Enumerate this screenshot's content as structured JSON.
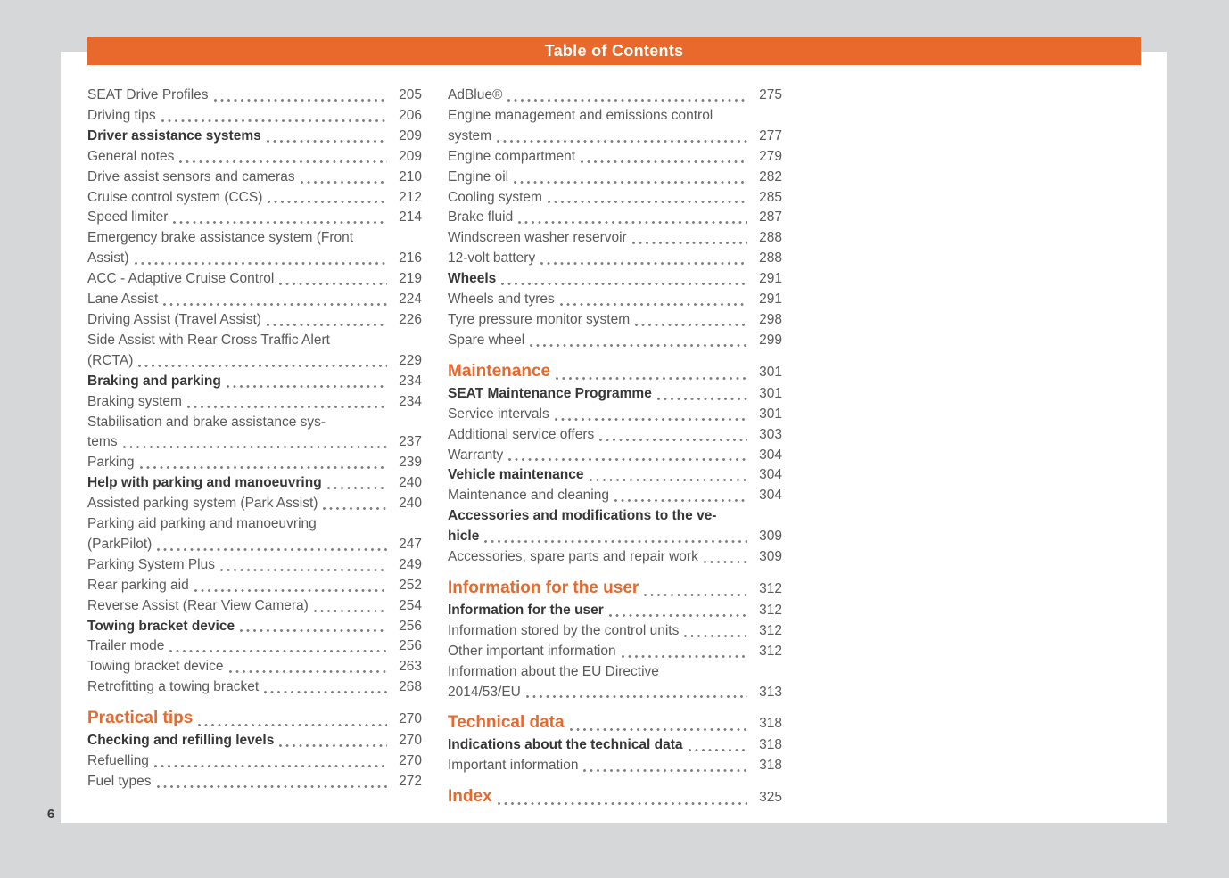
{
  "page": {
    "background": "#d6d7d8",
    "sheet_color": "#ffffff",
    "accent": "#e9682b",
    "page_number": "6"
  },
  "header": {
    "title": "Table of Contents"
  },
  "columns": [
    {
      "entries": [
        {
          "lines": [
            "SEAT Drive Profiles"
          ],
          "page": "205",
          "style": "normal"
        },
        {
          "lines": [
            "Driving tips"
          ],
          "page": "206",
          "style": "normal"
        },
        {
          "lines": [
            "Driver assistance systems"
          ],
          "page": "209",
          "style": "bold"
        },
        {
          "lines": [
            "General notes"
          ],
          "page": "209",
          "style": "normal"
        },
        {
          "lines": [
            "Drive assist sensors and cameras"
          ],
          "page": "210",
          "style": "normal"
        },
        {
          "lines": [
            "Cruise control system (CCS)"
          ],
          "page": "212",
          "style": "normal"
        },
        {
          "lines": [
            "Speed limiter"
          ],
          "page": "214",
          "style": "normal"
        },
        {
          "lines": [
            "Emergency brake assistance system (Front",
            "Assist)"
          ],
          "page": "216",
          "style": "normal"
        },
        {
          "lines": [
            "ACC - Adaptive Cruise Control"
          ],
          "page": "219",
          "style": "normal"
        },
        {
          "lines": [
            "Lane Assist"
          ],
          "page": "224",
          "style": "normal"
        },
        {
          "lines": [
            "Driving Assist (Travel Assist)"
          ],
          "page": "226",
          "style": "normal"
        },
        {
          "lines": [
            "Side Assist with Rear Cross Traffic Alert",
            "(RCTA)"
          ],
          "page": "229",
          "style": "normal"
        },
        {
          "lines": [
            "Braking and parking"
          ],
          "page": "234",
          "style": "bold"
        },
        {
          "lines": [
            "Braking system"
          ],
          "page": "234",
          "style": "normal"
        },
        {
          "lines": [
            "Stabilisation and brake assistance sys-",
            "tems"
          ],
          "page": "237",
          "style": "normal"
        },
        {
          "lines": [
            "Parking"
          ],
          "page": "239",
          "style": "normal"
        },
        {
          "lines": [
            "Help with parking and manoeuvring"
          ],
          "page": "240",
          "style": "bold"
        },
        {
          "lines": [
            "Assisted parking system (Park Assist)"
          ],
          "page": "240",
          "style": "normal"
        },
        {
          "lines": [
            "Parking aid parking and manoeuvring",
            "(ParkPilot)"
          ],
          "page": "247",
          "style": "normal"
        },
        {
          "lines": [
            "Parking System Plus"
          ],
          "page": "249",
          "style": "normal"
        },
        {
          "lines": [
            "Rear parking aid"
          ],
          "page": "252",
          "style": "normal"
        },
        {
          "lines": [
            "Reverse Assist (Rear View Camera)"
          ],
          "page": "254",
          "style": "normal"
        },
        {
          "lines": [
            "Towing bracket device"
          ],
          "page": "256",
          "style": "bold"
        },
        {
          "lines": [
            "Trailer mode"
          ],
          "page": "256",
          "style": "normal"
        },
        {
          "lines": [
            "Towing bracket device"
          ],
          "page": "263",
          "style": "normal"
        },
        {
          "lines": [
            "Retrofitting a towing bracket"
          ],
          "page": "268",
          "style": "normal"
        },
        {
          "lines": [
            "Practical tips"
          ],
          "page": "270",
          "style": "section"
        },
        {
          "lines": [
            "Checking and refilling levels"
          ],
          "page": "270",
          "style": "bold"
        },
        {
          "lines": [
            "Refuelling"
          ],
          "page": "270",
          "style": "normal"
        },
        {
          "lines": [
            "Fuel types"
          ],
          "page": "272",
          "style": "normal"
        }
      ]
    },
    {
      "entries": [
        {
          "lines": [
            "AdBlue®"
          ],
          "page": "275",
          "style": "normal"
        },
        {
          "lines": [
            "Engine management and emissions control",
            "system"
          ],
          "page": "277",
          "style": "normal"
        },
        {
          "lines": [
            "Engine compartment"
          ],
          "page": "279",
          "style": "normal"
        },
        {
          "lines": [
            "Engine oil"
          ],
          "page": "282",
          "style": "normal"
        },
        {
          "lines": [
            "Cooling system"
          ],
          "page": "285",
          "style": "normal"
        },
        {
          "lines": [
            "Brake fluid"
          ],
          "page": "287",
          "style": "normal"
        },
        {
          "lines": [
            "Windscreen washer reservoir"
          ],
          "page": "288",
          "style": "normal"
        },
        {
          "lines": [
            "12-volt battery"
          ],
          "page": "288",
          "style": "normal"
        },
        {
          "lines": [
            "Wheels"
          ],
          "page": "291",
          "style": "bold"
        },
        {
          "lines": [
            "Wheels and tyres"
          ],
          "page": "291",
          "style": "normal"
        },
        {
          "lines": [
            "Tyre pressure monitor system"
          ],
          "page": "298",
          "style": "normal"
        },
        {
          "lines": [
            "Spare wheel"
          ],
          "page": "299",
          "style": "normal"
        },
        {
          "lines": [
            "Maintenance"
          ],
          "page": "301",
          "style": "section"
        },
        {
          "lines": [
            "SEAT Maintenance Programme"
          ],
          "page": "301",
          "style": "bold"
        },
        {
          "lines": [
            "Service intervals"
          ],
          "page": "301",
          "style": "normal"
        },
        {
          "lines": [
            "Additional service offers"
          ],
          "page": "303",
          "style": "normal"
        },
        {
          "lines": [
            "Warranty"
          ],
          "page": "304",
          "style": "normal"
        },
        {
          "lines": [
            "Vehicle maintenance"
          ],
          "page": "304",
          "style": "bold"
        },
        {
          "lines": [
            "Maintenance and cleaning"
          ],
          "page": "304",
          "style": "normal"
        },
        {
          "lines": [
            "Accessories and modifications to the ve-",
            "hicle"
          ],
          "page": "309",
          "style": "bold"
        },
        {
          "lines": [
            "Accessories, spare parts and repair work"
          ],
          "page": "309",
          "style": "normal"
        },
        {
          "lines": [
            "Information for the user"
          ],
          "page": "312",
          "style": "section"
        },
        {
          "lines": [
            "Information for the user"
          ],
          "page": "312",
          "style": "bold"
        },
        {
          "lines": [
            "Information stored by the control units"
          ],
          "page": "312",
          "style": "normal"
        },
        {
          "lines": [
            "Other important information"
          ],
          "page": "312",
          "style": "normal"
        },
        {
          "lines": [
            "Information about the EU Directive",
            "2014/53/EU"
          ],
          "page": "313",
          "style": "normal"
        },
        {
          "lines": [
            "Technical data"
          ],
          "page": "318",
          "style": "section"
        },
        {
          "lines": [
            "Indications about the technical data"
          ],
          "page": "318",
          "style": "bold"
        },
        {
          "lines": [
            "Important information"
          ],
          "page": "318",
          "style": "normal"
        },
        {
          "lines": [
            "Index"
          ],
          "page": "325",
          "style": "section"
        }
      ]
    }
  ]
}
